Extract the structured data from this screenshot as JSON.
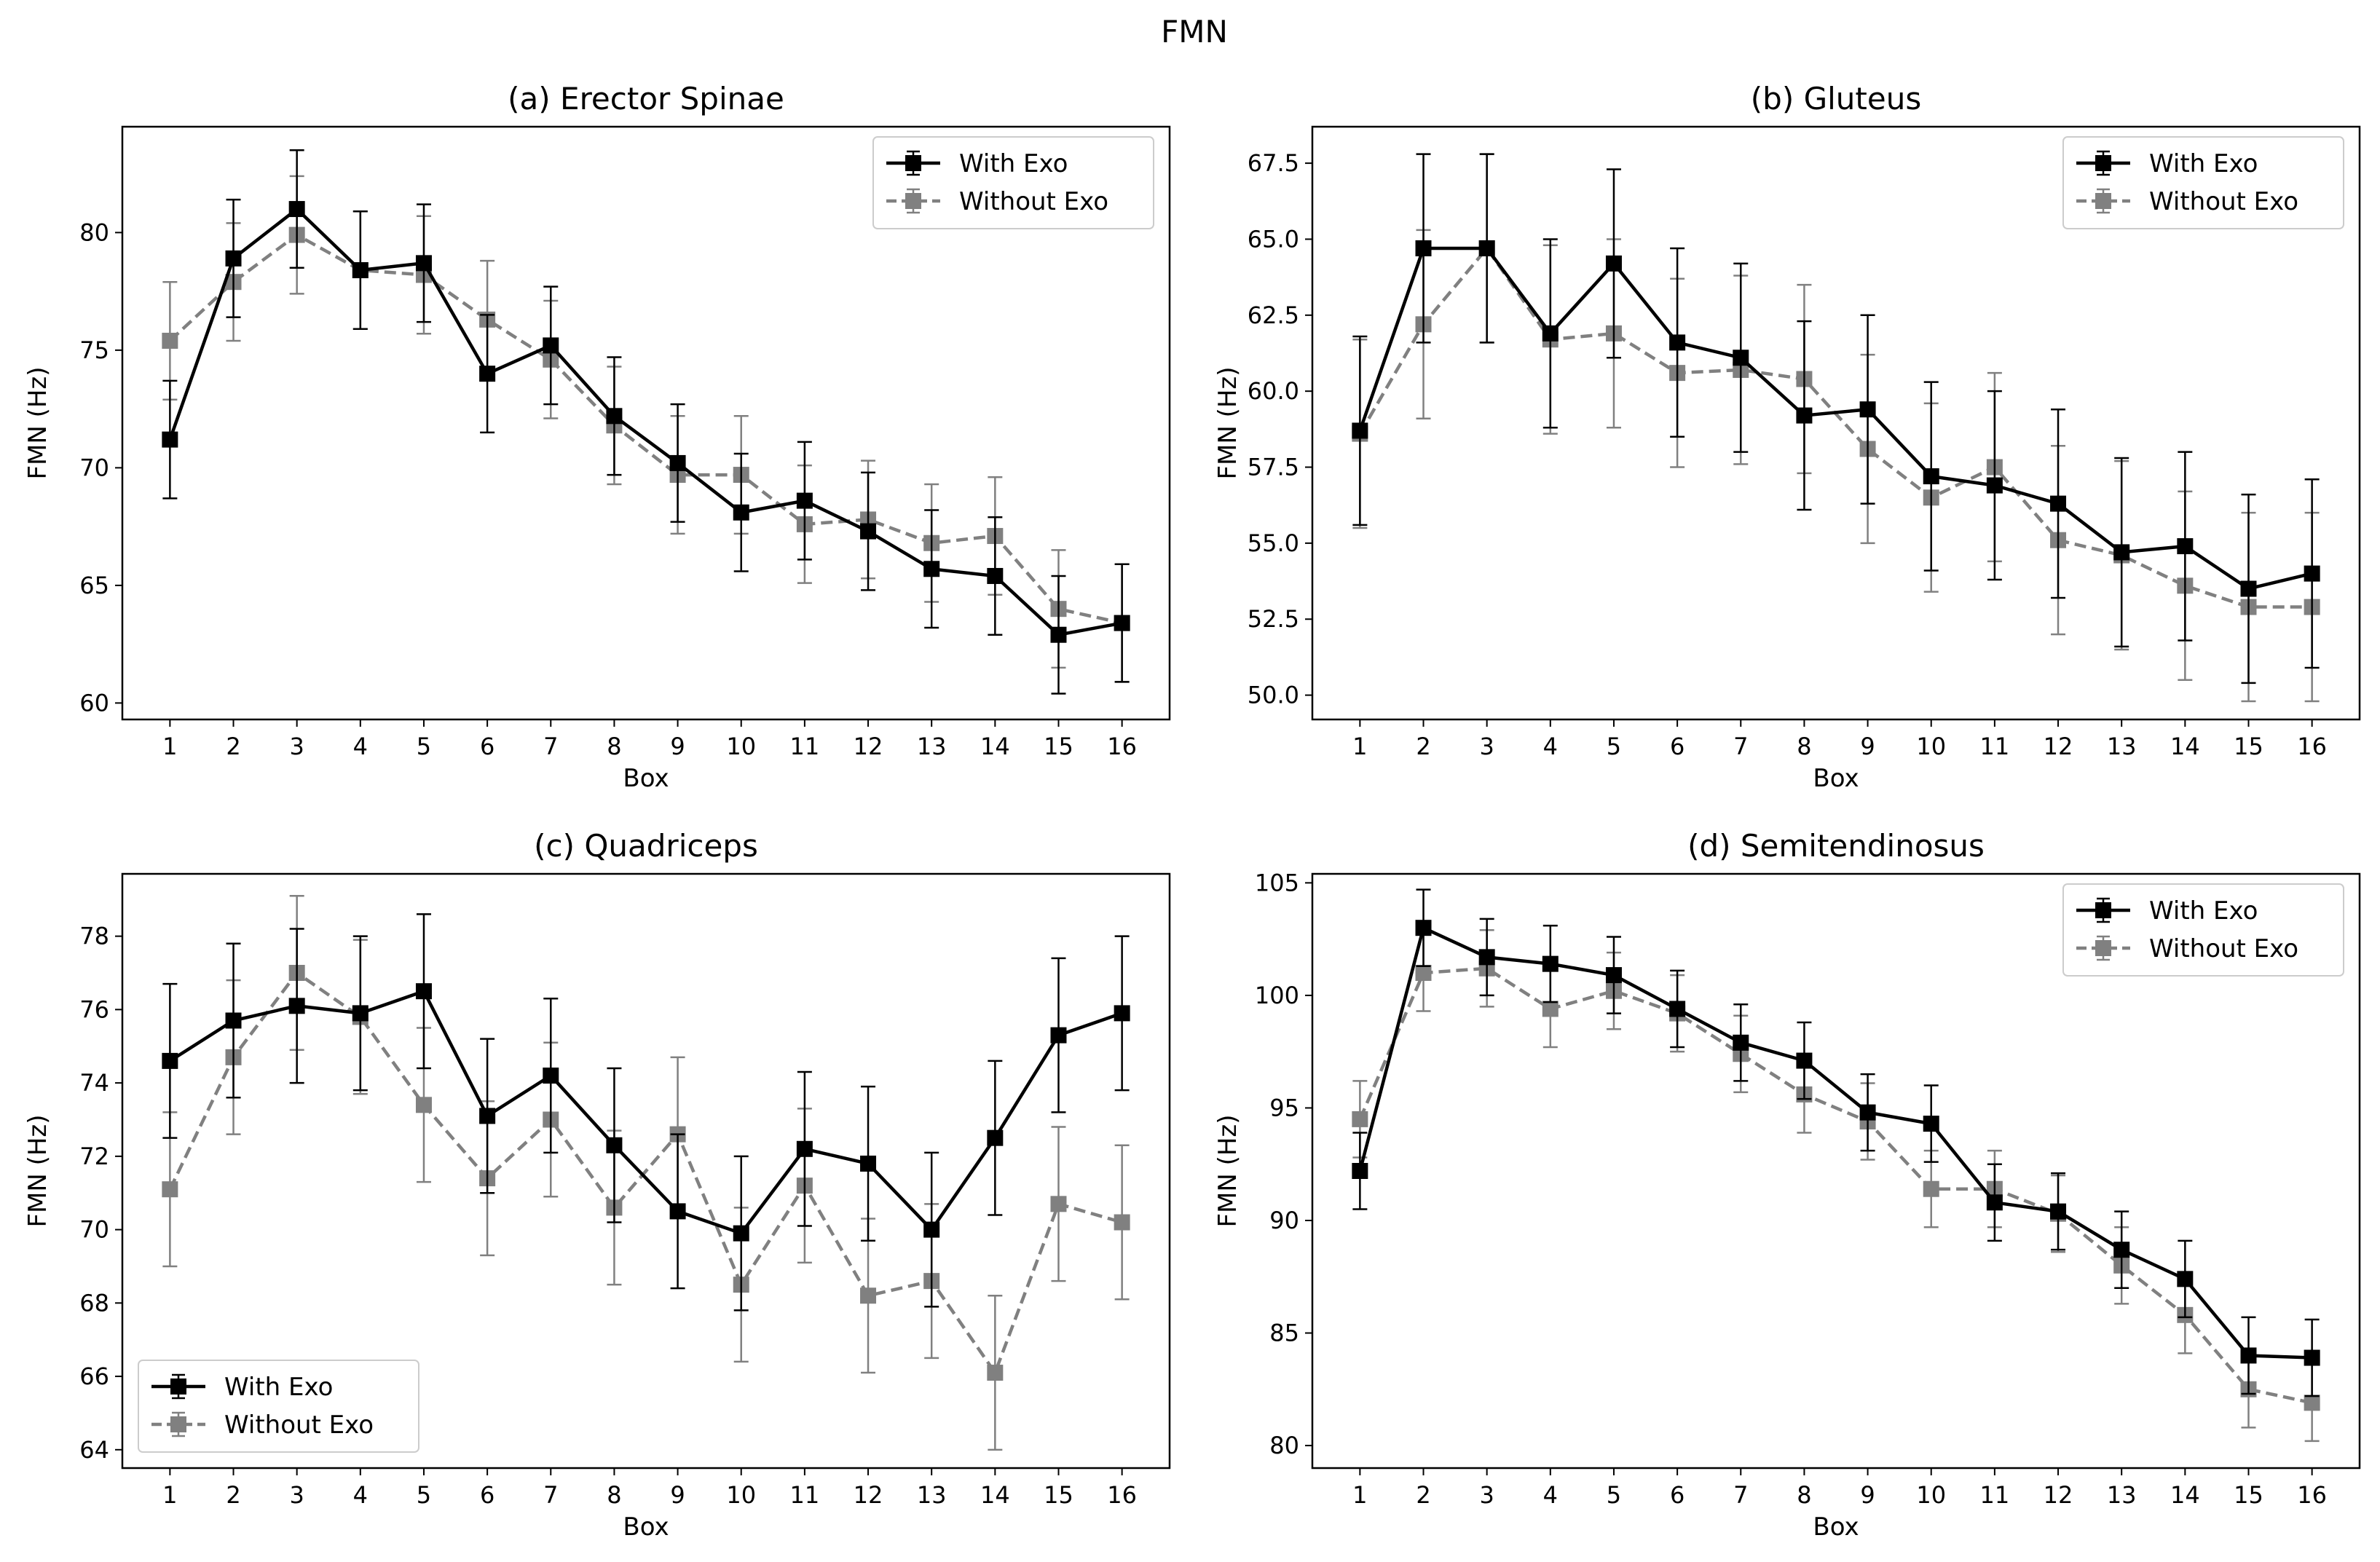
{
  "figure_title": "FMN",
  "colors": {
    "with_exo": "#000000",
    "without_exo": "#808080"
  },
  "chart_data": [
    {
      "type": "line",
      "title": "(a)  Erector Spinae",
      "xlabel": "Box",
      "ylabel": "FMN (Hz)",
      "x": [
        1,
        2,
        3,
        4,
        5,
        6,
        7,
        8,
        9,
        10,
        11,
        12,
        13,
        14,
        15,
        16
      ],
      "ylim": [
        59.3,
        84.5
      ],
      "yticks": [
        "60",
        "65",
        "70",
        "75",
        "80"
      ],
      "legend_position": "upper right",
      "series": [
        {
          "name": "With Exo",
          "color": "#000000",
          "linestyle": "solid",
          "marker": "square",
          "values": [
            71.2,
            78.9,
            81.0,
            78.4,
            78.7,
            74.0,
            75.2,
            72.2,
            70.2,
            68.1,
            68.6,
            67.3,
            65.7,
            65.4,
            62.9,
            63.4
          ],
          "errors": [
            2.5,
            2.5,
            2.5,
            2.5,
            2.5,
            2.5,
            2.5,
            2.5,
            2.5,
            2.5,
            2.5,
            2.5,
            2.5,
            2.5,
            2.5,
            2.5
          ]
        },
        {
          "name": "Without Exo",
          "color": "#808080",
          "linestyle": "dashed",
          "marker": "square",
          "values": [
            75.4,
            77.9,
            79.9,
            78.4,
            78.2,
            76.3,
            74.6,
            71.8,
            69.7,
            69.7,
            67.6,
            67.8,
            66.8,
            67.1,
            64.0,
            63.4
          ],
          "errors": [
            2.5,
            2.5,
            2.5,
            2.5,
            2.5,
            2.5,
            2.5,
            2.5,
            2.5,
            2.5,
            2.5,
            2.5,
            2.5,
            2.5,
            2.5,
            2.5
          ]
        }
      ]
    },
    {
      "type": "line",
      "title": "(b)  Gluteus",
      "xlabel": "Box",
      "ylabel": "FMN (Hz)",
      "x": [
        1,
        2,
        3,
        4,
        5,
        6,
        7,
        8,
        9,
        10,
        11,
        12,
        13,
        14,
        15,
        16
      ],
      "ylim": [
        49.2,
        68.7
      ],
      "yticks": [
        "50.0",
        "52.5",
        "55.0",
        "57.5",
        "60.0",
        "62.5",
        "65.0",
        "67.5"
      ],
      "legend_position": "upper right",
      "series": [
        {
          "name": "With Exo",
          "color": "#000000",
          "linestyle": "solid",
          "marker": "square",
          "values": [
            58.7,
            64.7,
            64.7,
            61.9,
            64.2,
            61.6,
            61.1,
            59.2,
            59.4,
            57.2,
            56.9,
            56.3,
            54.7,
            54.9,
            53.5,
            54.0
          ],
          "errors": [
            3.1,
            3.1,
            3.1,
            3.1,
            3.1,
            3.1,
            3.1,
            3.1,
            3.1,
            3.1,
            3.1,
            3.1,
            3.1,
            3.1,
            3.1,
            3.1
          ]
        },
        {
          "name": "Without Exo",
          "color": "#808080",
          "linestyle": "dashed",
          "marker": "square",
          "values": [
            58.6,
            62.2,
            64.7,
            61.7,
            61.9,
            60.6,
            60.7,
            60.4,
            58.1,
            56.5,
            57.5,
            55.1,
            54.6,
            53.6,
            52.9,
            52.9
          ],
          "errors": [
            3.1,
            3.1,
            3.1,
            3.1,
            3.1,
            3.1,
            3.1,
            3.1,
            3.1,
            3.1,
            3.1,
            3.1,
            3.1,
            3.1,
            3.1,
            3.1
          ]
        }
      ]
    },
    {
      "type": "line",
      "title": "(c)  Quadriceps",
      "xlabel": "Box",
      "ylabel": "FMN (Hz)",
      "x": [
        1,
        2,
        3,
        4,
        5,
        6,
        7,
        8,
        9,
        10,
        11,
        12,
        13,
        14,
        15,
        16
      ],
      "ylim": [
        63.5,
        79.7
      ],
      "yticks": [
        "64",
        "66",
        "68",
        "70",
        "72",
        "74",
        "76",
        "78"
      ],
      "legend_position": "lower left",
      "series": [
        {
          "name": "With Exo",
          "color": "#000000",
          "linestyle": "solid",
          "marker": "square",
          "values": [
            74.6,
            75.7,
            76.1,
            75.9,
            76.5,
            73.1,
            74.2,
            72.3,
            70.5,
            69.9,
            72.2,
            71.8,
            70.0,
            72.5,
            75.3,
            75.9
          ],
          "errors": [
            2.1,
            2.1,
            2.1,
            2.1,
            2.1,
            2.1,
            2.1,
            2.1,
            2.1,
            2.1,
            2.1,
            2.1,
            2.1,
            2.1,
            2.1,
            2.1
          ]
        },
        {
          "name": "Without Exo",
          "color": "#808080",
          "linestyle": "dashed",
          "marker": "square",
          "values": [
            71.1,
            74.7,
            77.0,
            75.8,
            73.4,
            71.4,
            73.0,
            70.6,
            72.6,
            68.5,
            71.2,
            68.2,
            68.6,
            66.1,
            70.7,
            70.2
          ],
          "errors": [
            2.1,
            2.1,
            2.1,
            2.1,
            2.1,
            2.1,
            2.1,
            2.1,
            2.1,
            2.1,
            2.1,
            2.1,
            2.1,
            2.1,
            2.1,
            2.1
          ]
        }
      ]
    },
    {
      "type": "line",
      "title": "(d)  Semitendinosus",
      "xlabel": "Box",
      "ylabel": "FMN (Hz)",
      "x": [
        1,
        2,
        3,
        4,
        5,
        6,
        7,
        8,
        9,
        10,
        11,
        12,
        13,
        14,
        15,
        16
      ],
      "ylim": [
        79.0,
        105.4
      ],
      "yticks": [
        "80",
        "85",
        "90",
        "95",
        "100",
        "105"
      ],
      "legend_position": "upper right",
      "series": [
        {
          "name": "With Exo",
          "color": "#000000",
          "linestyle": "solid",
          "marker": "square",
          "values": [
            92.2,
            103.0,
            101.7,
            101.4,
            100.9,
            99.4,
            97.9,
            97.1,
            94.8,
            94.3,
            90.8,
            90.4,
            88.7,
            87.4,
            84.0,
            83.9
          ],
          "errors": [
            1.7,
            1.7,
            1.7,
            1.7,
            1.7,
            1.7,
            1.7,
            1.7,
            1.7,
            1.7,
            1.7,
            1.7,
            1.7,
            1.7,
            1.7,
            1.7
          ]
        },
        {
          "name": "Without Exo",
          "color": "#808080",
          "linestyle": "dashed",
          "marker": "square",
          "values": [
            94.5,
            101.0,
            101.2,
            99.4,
            100.2,
            99.2,
            97.4,
            95.6,
            94.4,
            91.4,
            91.4,
            90.3,
            88.0,
            85.8,
            82.5,
            81.9
          ],
          "errors": [
            1.7,
            1.7,
            1.7,
            1.7,
            1.7,
            1.7,
            1.7,
            1.7,
            1.7,
            1.7,
            1.7,
            1.7,
            1.7,
            1.7,
            1.7,
            1.7
          ]
        }
      ]
    }
  ]
}
